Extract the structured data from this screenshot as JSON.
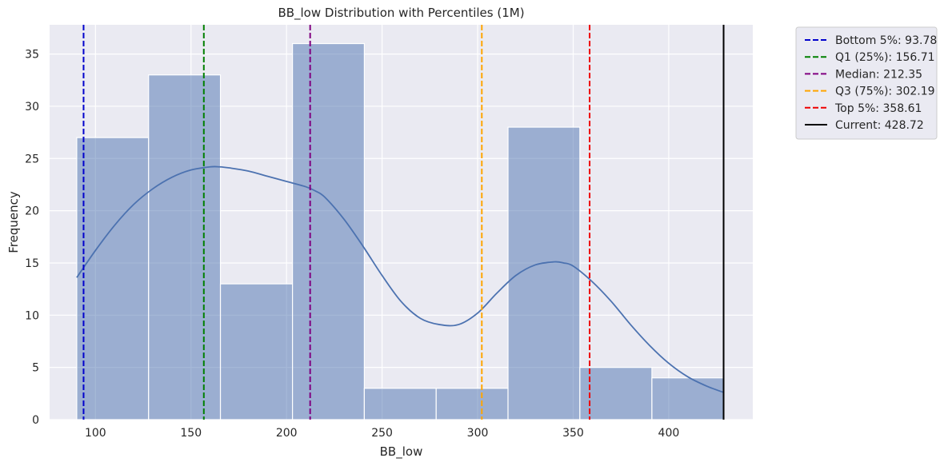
{
  "chart_data": {
    "type": "bar",
    "title": "BB_low Distribution with Percentiles (1M)",
    "xlabel": "BB_low",
    "ylabel": "Frequency",
    "xlim": [
      76.0,
      444.0
    ],
    "ylim": [
      0,
      37.8
    ],
    "xticks": [
      100,
      150,
      200,
      250,
      300,
      350,
      400
    ],
    "yticks": [
      0,
      5,
      10,
      15,
      20,
      25,
      30,
      35
    ],
    "grid": true,
    "colors": {
      "background": "#eaeaf2",
      "grid": "#ffffff",
      "bar": "#4c72b0",
      "kde": "#4c72b0"
    },
    "bins": [
      {
        "start": 90.2,
        "end": 127.8,
        "count": 27
      },
      {
        "start": 127.8,
        "end": 165.4,
        "count": 33
      },
      {
        "start": 165.4,
        "end": 203.1,
        "count": 13
      },
      {
        "start": 203.1,
        "end": 240.7,
        "count": 36
      },
      {
        "start": 240.7,
        "end": 278.3,
        "count": 3
      },
      {
        "start": 278.3,
        "end": 315.9,
        "count": 3
      },
      {
        "start": 315.9,
        "end": 353.5,
        "count": 28
      },
      {
        "start": 353.5,
        "end": 391.2,
        "count": 5
      },
      {
        "start": 391.2,
        "end": 428.8,
        "count": 4
      }
    ],
    "kde": {
      "x": [
        90.2,
        100,
        110,
        120,
        130,
        140,
        150,
        160,
        165,
        170,
        180,
        190,
        200,
        210,
        215,
        220,
        230,
        240,
        250,
        260,
        270,
        280,
        290,
        300,
        310,
        320,
        330,
        340,
        345,
        350,
        360,
        370,
        380,
        390,
        400,
        410,
        420,
        428.8
      ],
      "y": [
        13.6,
        16.2,
        18.6,
        20.6,
        22.1,
        23.2,
        23.9,
        24.2,
        24.2,
        24.1,
        23.8,
        23.3,
        22.8,
        22.3,
        21.9,
        21.3,
        19.2,
        16.6,
        13.8,
        11.3,
        9.7,
        9.1,
        9.1,
        10.2,
        12.1,
        13.8,
        14.8,
        15.1,
        15.0,
        14.7,
        13.2,
        11.3,
        9.1,
        7.1,
        5.4,
        4.1,
        3.2,
        2.6
      ]
    },
    "lines": [
      {
        "label": "Bottom 5%: 93.78",
        "x": 93.78,
        "color": "#0000cc",
        "style": "dashed"
      },
      {
        "label": "Q1 (25%): 156.71",
        "x": 156.71,
        "color": "#008000",
        "style": "dashed"
      },
      {
        "label": "Median: 212.35",
        "x": 212.35,
        "color": "#800080",
        "style": "dashed"
      },
      {
        "label": "Q3 (75%): 302.19",
        "x": 302.19,
        "color": "#ffa500",
        "style": "dashed"
      },
      {
        "label": "Top 5%: 358.61",
        "x": 358.61,
        "color": "#ee0000",
        "style": "dashed"
      },
      {
        "label": "Current: 428.72",
        "x": 428.72,
        "color": "#000000",
        "style": "solid"
      }
    ],
    "legend_position": "outside-top-right"
  }
}
